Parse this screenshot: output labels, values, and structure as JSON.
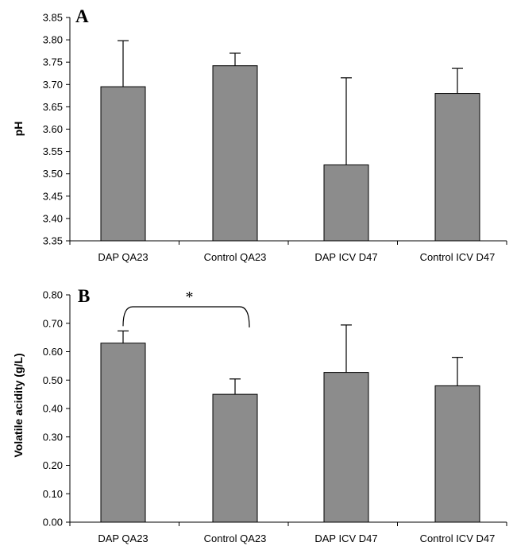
{
  "chart_data": [
    {
      "panel": "A",
      "type": "bar",
      "ylabel": "pH",
      "xlabel": "",
      "categories": [
        "DAP QA23",
        "Control QA23",
        "DAP ICV D47",
        "Control ICV D47"
      ],
      "values": [
        3.695,
        3.742,
        3.52,
        3.68
      ],
      "errors": [
        0.103,
        0.028,
        0.195,
        0.056
      ],
      "ylim": [
        3.35,
        3.85
      ],
      "yticks": [
        "3.35",
        "3.40",
        "3.45",
        "3.50",
        "3.55",
        "3.60",
        "3.65",
        "3.70",
        "3.75",
        "3.80",
        "3.85"
      ],
      "bar_color": "#8c8c8c",
      "grid": false,
      "legend": "none"
    },
    {
      "panel": "B",
      "type": "bar",
      "ylabel": "Volatile acidity (g/L)",
      "xlabel": "",
      "categories": [
        "DAP QA23",
        "Control QA23",
        "DAP ICV D47",
        "Control ICV D47"
      ],
      "values": [
        0.63,
        0.45,
        0.527,
        0.48
      ],
      "errors": [
        0.043,
        0.054,
        0.167,
        0.1
      ],
      "ylim": [
        0.0,
        0.8
      ],
      "yticks": [
        "0.00",
        "0.10",
        "0.20",
        "0.30",
        "0.40",
        "0.50",
        "0.60",
        "0.70",
        "0.80"
      ],
      "bar_color": "#8c8c8c",
      "grid": false,
      "legend": "none",
      "significance": {
        "from": 0,
        "to": 1,
        "label": "*"
      }
    }
  ]
}
